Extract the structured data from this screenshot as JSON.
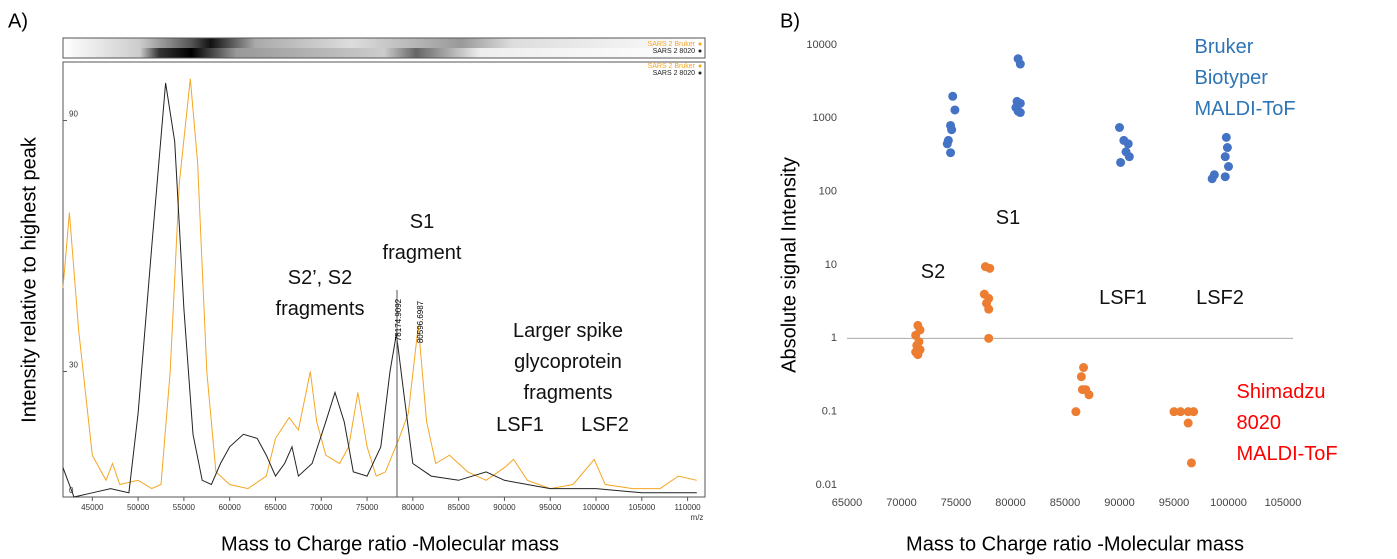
{
  "chart_data": [
    {
      "type": "line",
      "label": "A)",
      "x_label": "Mass to Charge ratio -Molecular mass",
      "y_label": "Intensity relative to highest peak",
      "x_unit": "m/z",
      "xlim": [
        41800,
        111900
      ],
      "xticks": [
        45000,
        50000,
        55000,
        60000,
        65000,
        70000,
        75000,
        80000,
        85000,
        90000,
        95000,
        100000,
        105000,
        110000
      ],
      "ylim": [
        0,
        104
      ],
      "yticks": [
        0,
        30,
        90
      ],
      "annotations": [
        "S2’, S2\nfragments",
        "S1\nfragment",
        "Larger spike\nglycoprotein\nfragments",
        "LSF1",
        "LSF2"
      ],
      "peak_labels": [
        "78174.9092",
        "80596.6987"
      ],
      "series": [
        {
          "name": "SARS 2 Bruker",
          "color": "#f5a623",
          "x": [
            41800,
            42500,
            43500,
            45000,
            46500,
            47200,
            48000,
            50000,
            51500,
            52500,
            53500,
            54500,
            55700,
            56500,
            57500,
            58500,
            60000,
            62000,
            64000,
            65000,
            66500,
            67500,
            68800,
            69500,
            70500,
            72000,
            73000,
            74000,
            75000,
            76000,
            77000,
            78500,
            79500,
            80600,
            81500,
            82500,
            84000,
            86000,
            88000,
            90000,
            91000,
            92500,
            95000,
            97500,
            99800,
            101000,
            104000,
            107000,
            109000,
            111000
          ],
          "values": [
            50,
            68,
            40,
            10,
            4,
            8,
            3,
            4,
            2,
            3,
            30,
            75,
            100,
            80,
            30,
            6,
            3,
            2,
            5,
            14,
            19,
            16,
            30,
            18,
            10,
            8,
            12,
            25,
            12,
            5,
            6,
            14,
            20,
            41,
            18,
            8,
            10,
            6,
            4,
            7,
            9,
            4,
            2,
            3,
            9,
            3,
            2,
            2,
            5,
            4
          ]
        },
        {
          "name": "SARS 2 8020",
          "color": "#222222",
          "x": [
            41800,
            43000,
            45000,
            47000,
            49000,
            50000,
            51500,
            53000,
            54000,
            55000,
            56000,
            57000,
            58000,
            59000,
            60000,
            61500,
            63000,
            64000,
            65000,
            66000,
            66800,
            67500,
            69000,
            70500,
            71500,
            72500,
            73500,
            75000,
            76500,
            77500,
            78200,
            79000,
            80000,
            82000,
            85000,
            88000,
            90000,
            95000,
            100000,
            105000,
            111000
          ],
          "values": [
            7,
            0,
            1,
            2,
            1,
            20,
            60,
            99,
            85,
            45,
            15,
            4,
            3,
            8,
            12,
            15,
            14,
            10,
            5,
            8,
            12,
            5,
            8,
            18,
            25,
            18,
            6,
            5,
            12,
            30,
            39,
            25,
            8,
            5,
            4,
            6,
            4,
            2,
            2,
            1,
            1
          ]
        }
      ]
    },
    {
      "type": "scatter",
      "label": "B)",
      "x_label": "Mass to Charge ratio -Molecular mass",
      "y_label": "Absolute signal Intensity",
      "xlim": [
        65000,
        105000
      ],
      "xticks": [
        65000,
        70000,
        75000,
        80000,
        85000,
        90000,
        95000,
        100000,
        105000
      ],
      "ylim": [
        0.01,
        10000
      ],
      "yticks": [
        0.01,
        0.1,
        1,
        10,
        100,
        1000,
        10000
      ],
      "log_y": true,
      "annotations": [
        "S2",
        "S1",
        "LSF1",
        "LSF2"
      ],
      "series": [
        {
          "name": "Bruker Biotyper\nMALDI-ToF",
          "color": "#4472c4",
          "label_color": "#2e75b6",
          "x": [
            74700,
            74900,
            74500,
            74600,
            74300,
            74200,
            74500,
            80700,
            80900,
            80600,
            80900,
            80500,
            80700,
            80900,
            90000,
            90400,
            90800,
            90600,
            90900,
            90100,
            99800,
            99900,
            99700,
            100000,
            98700,
            98500,
            99700
          ],
          "values": [
            2000,
            1300,
            800,
            700,
            500,
            450,
            340,
            6500,
            5500,
            1700,
            1600,
            1400,
            1250,
            1200,
            750,
            500,
            450,
            350,
            300,
            250,
            550,
            400,
            300,
            220,
            170,
            150,
            160
          ]
        },
        {
          "name": "Shimadzu 8020\nMALDI-ToF",
          "color": "#ed7d31",
          "label_color": "#ff0000",
          "x": [
            71500,
            71700,
            71300,
            71600,
            71400,
            71700,
            71300,
            71500,
            77700,
            78100,
            77600,
            78000,
            77800,
            78000,
            78000,
            86700,
            86500,
            86900,
            86600,
            87200,
            86000,
            95000,
            95600,
            96300,
            96800,
            96300,
            96600
          ],
          "values": [
            1.5,
            1.3,
            1.1,
            0.9,
            0.8,
            0.7,
            0.65,
            0.6,
            9.5,
            9,
            4,
            3.5,
            3,
            2.5,
            1,
            0.4,
            0.3,
            0.2,
            0.2,
            0.17,
            0.1,
            0.1,
            0.1,
            0.1,
            0.1,
            0.07,
            0.02
          ]
        }
      ]
    }
  ]
}
